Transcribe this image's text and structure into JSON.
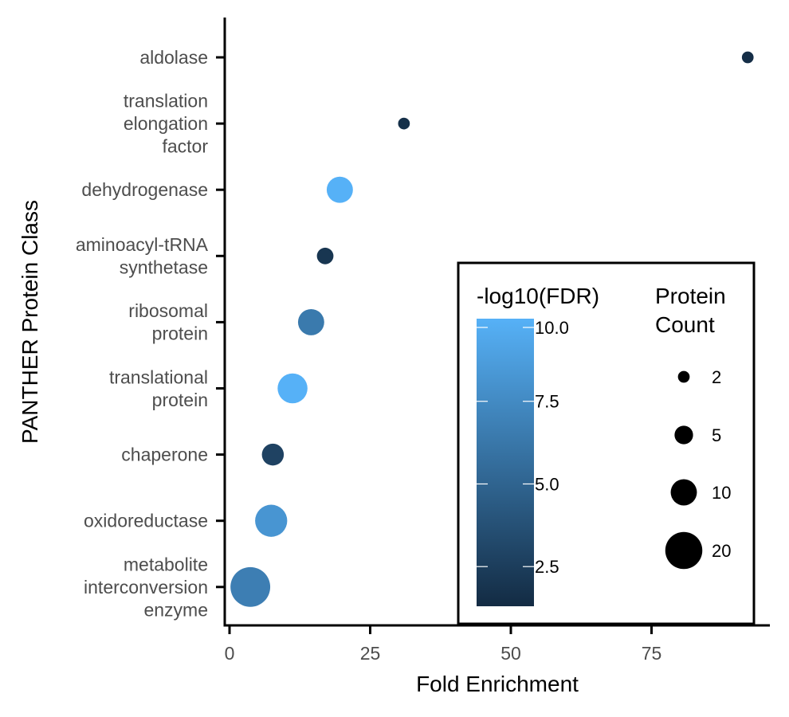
{
  "chart_data": {
    "type": "scatter",
    "xlabel": "Fold Enrichment",
    "ylabel": "PANTHER Protein Class",
    "xlim": [
      -1,
      97
    ],
    "x_ticks": [
      0,
      25,
      50,
      75
    ],
    "grid": false,
    "categories": [
      "aldolase",
      "translation elongation factor",
      "dehydrogenase",
      "aminoacyl-tRNA synthetase",
      "ribosomal protein",
      "translational protein",
      "chaperone",
      "oxidoreductase",
      "metabolite interconversion enzyme"
    ],
    "category_lines": [
      [
        "aldolase"
      ],
      [
        "translation",
        "elongation",
        "factor"
      ],
      [
        "dehydrogenase"
      ],
      [
        "aminoacyl-tRNA",
        "synthetase"
      ],
      [
        "ribosomal",
        "protein"
      ],
      [
        "translational",
        "protein"
      ],
      [
        "chaperone"
      ],
      [
        "oxidoreductase"
      ],
      [
        "metabolite",
        "interconversion",
        "enzyme"
      ]
    ],
    "points": [
      {
        "category": "aldolase",
        "fold_enrichment": 92.1,
        "neg_log10_fdr": 1.5,
        "protein_count": 2
      },
      {
        "category": "translation elongation factor",
        "fold_enrichment": 31.0,
        "neg_log10_fdr": 1.6,
        "protein_count": 2
      },
      {
        "category": "dehydrogenase",
        "fold_enrichment": 19.6,
        "neg_log10_fdr": 10.0,
        "protein_count": 10
      },
      {
        "category": "aminoacyl-tRNA synthetase",
        "fold_enrichment": 17.0,
        "neg_log10_fdr": 2.0,
        "protein_count": 4
      },
      {
        "category": "ribosomal protein",
        "fold_enrichment": 14.5,
        "neg_log10_fdr": 6.4,
        "protein_count": 10
      },
      {
        "category": "translational protein",
        "fold_enrichment": 11.2,
        "neg_log10_fdr": 10.0,
        "protein_count": 13
      },
      {
        "category": "chaperone",
        "fold_enrichment": 7.7,
        "neg_log10_fdr": 2.8,
        "protein_count": 7
      },
      {
        "category": "oxidoreductase",
        "fold_enrichment": 7.4,
        "neg_log10_fdr": 8.2,
        "protein_count": 15
      },
      {
        "category": "metabolite interconversion enzyme",
        "fold_enrichment": 3.7,
        "neg_log10_fdr": 6.7,
        "protein_count": 23
      }
    ],
    "color_legend": {
      "title": "-log10(FDR)",
      "min": 1.3,
      "max": 10.0,
      "ticks": [
        2.5,
        5.0,
        7.5,
        10.0
      ],
      "tick_labels": [
        "2.5",
        "5.0",
        "7.5",
        "10.0"
      ],
      "low_color": "#132b43",
      "high_color": "#56b1f7"
    },
    "size_legend": {
      "title_lines": [
        "Protein",
        "Count"
      ],
      "values": [
        2,
        5,
        10,
        20
      ],
      "labels": [
        "2",
        "5",
        "10",
        "20"
      ]
    },
    "legend_position": "bottom-right inside"
  }
}
